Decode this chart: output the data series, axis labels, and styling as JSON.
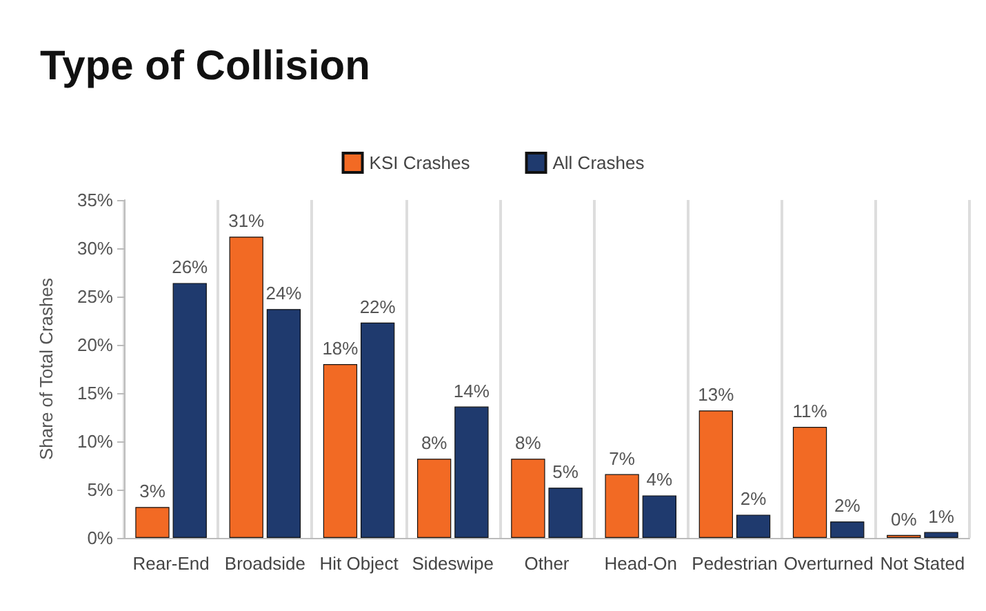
{
  "chart_data": {
    "type": "bar",
    "title": "Type of Collision",
    "ylabel": "Share of Total Crashes",
    "categories": [
      "Rear-End",
      "Broadside",
      "Hit Object",
      "Sideswipe",
      "Other",
      "Head-On",
      "Pedestrian",
      "Overturned",
      "Not Stated"
    ],
    "series": [
      {
        "name": "KSI Crashes",
        "color": "#f26a24",
        "values": [
          3.2,
          31.2,
          18,
          8.2,
          8.2,
          6.6,
          13.2,
          11.5,
          0.3
        ],
        "value_labels": [
          "3%",
          "31%",
          "18%",
          "8%",
          "8%",
          "7%",
          "13%",
          "11%",
          "0%"
        ]
      },
      {
        "name": "All Crashes",
        "color": "#1f3a6e",
        "values": [
          26.4,
          23.7,
          22.3,
          13.6,
          5.2,
          4.4,
          2.4,
          1.7,
          0.6
        ],
        "value_labels": [
          "26%",
          "24%",
          "22%",
          "14%",
          "5%",
          "4%",
          "2%",
          "2%",
          "1%"
        ]
      }
    ],
    "ylim": [
      0,
      35
    ],
    "yticks": [
      {
        "value": 0,
        "label": "0%"
      },
      {
        "value": 5,
        "label": "5%"
      },
      {
        "value": 10,
        "label": "10%"
      },
      {
        "value": 15,
        "label": "15%"
      },
      {
        "value": 20,
        "label": "20%"
      },
      {
        "value": 25,
        "label": "25%"
      },
      {
        "value": 30,
        "label": "30%"
      },
      {
        "value": 35,
        "label": "35%"
      }
    ],
    "grid": "x",
    "legend": "top"
  }
}
